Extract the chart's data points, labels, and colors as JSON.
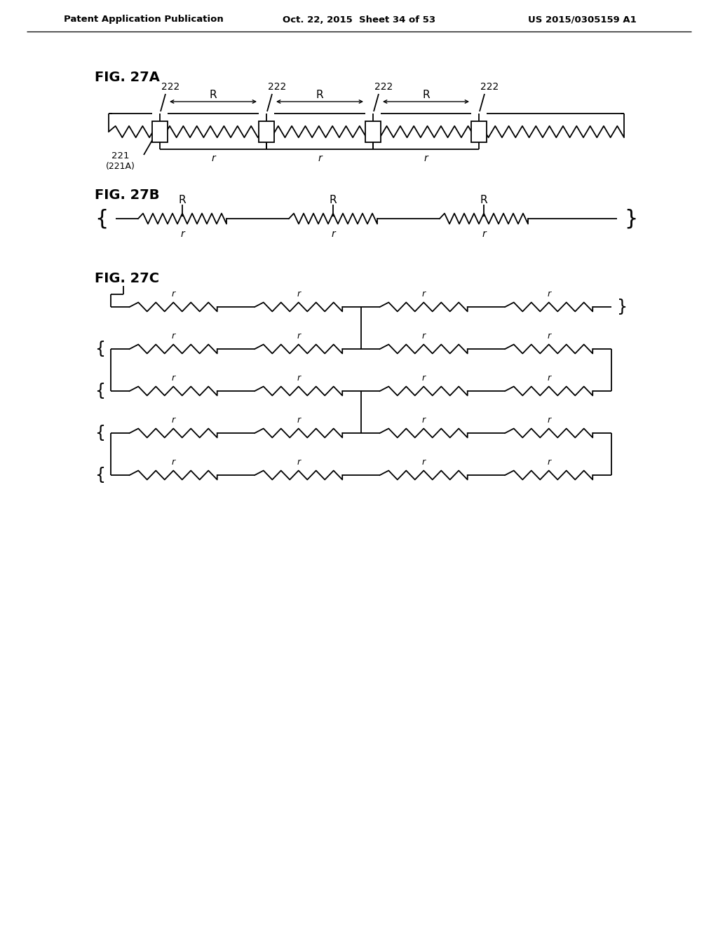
{
  "background_color": "#ffffff",
  "line_color": "#000000",
  "header_left": "Patent Application Publication",
  "header_mid": "Oct. 22, 2015  Sheet 34 of 53",
  "header_right": "US 2015/0305159 A1"
}
